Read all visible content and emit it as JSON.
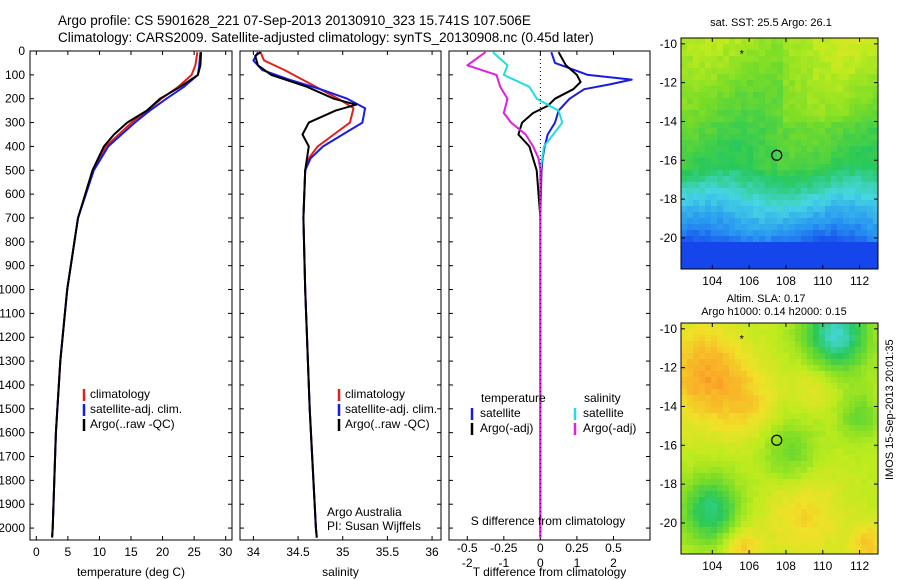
{
  "header": {
    "line1": "Argo profile: CS 5901628_221 07-Sep-2013 20130910_323 15.741S 107.506E",
    "line2": "Climatology: CARS2009. Satellite-adjusted climatology: synTS_20130908.nc (0.45d later)"
  },
  "stamp": "IMOS 15-Sep-2013 20:01:35",
  "colors": {
    "climatology": "#e3211c",
    "satellite": "#1a1ae6",
    "argo": "#000000",
    "sat_salinity": "#22dde0",
    "argo_salinity": "#e020e0"
  },
  "chart_data": [
    {
      "type": "line",
      "xlabel": "temperature (deg C)",
      "ylabel": "",
      "xlim": [
        -1,
        31
      ],
      "ylim": [
        2050,
        0
      ],
      "xticks": [
        0,
        5,
        10,
        15,
        20,
        25,
        30
      ],
      "yticks": [
        0,
        100,
        200,
        300,
        400,
        500,
        600,
        700,
        800,
        900,
        1000,
        1100,
        1200,
        1300,
        1400,
        1500,
        1600,
        1700,
        1800,
        1900,
        2000
      ],
      "legend": [
        "climatology",
        "satellite-adj. clim.",
        "Argo(..raw -QC)"
      ],
      "legend_position": "lower-right",
      "series": [
        {
          "name": "climatology",
          "color": "climatology",
          "depth": [
            5,
            60,
            100,
            150,
            200,
            250,
            300,
            400,
            500,
            700,
            1000,
            1300,
            1600,
            2000,
            2040
          ],
          "values": [
            25.5,
            25.2,
            24.6,
            22.5,
            19.8,
            17.6,
            15.1,
            11.0,
            9.0,
            6.6,
            4.9,
            3.8,
            3.1,
            2.6,
            2.5
          ]
        },
        {
          "name": "satellite-adj. clim.",
          "color": "satellite",
          "depth": [
            5,
            60,
            100,
            150,
            200,
            250,
            300,
            400,
            500,
            700,
            1000,
            1300,
            1600,
            2000,
            2040
          ],
          "values": [
            26.0,
            25.8,
            25.6,
            23.4,
            20.6,
            18.0,
            15.6,
            11.4,
            9.1,
            6.6,
            4.9,
            3.8,
            3.1,
            2.6,
            2.5
          ]
        },
        {
          "name": "Argo(..raw -QC)",
          "color": "argo",
          "depth": [
            5,
            60,
            100,
            150,
            200,
            250,
            300,
            350,
            400,
            500,
            700,
            1000,
            1300,
            1600,
            2000,
            2040
          ],
          "values": [
            26.1,
            26.0,
            25.6,
            22.8,
            19.6,
            17.5,
            14.4,
            12.3,
            10.7,
            8.9,
            6.6,
            4.9,
            3.8,
            3.1,
            2.6,
            2.5
          ]
        }
      ]
    },
    {
      "type": "line",
      "xlabel": "salinity",
      "ylabel": "",
      "xlim": [
        33.85,
        36.1
      ],
      "ylim": [
        2050,
        0
      ],
      "xticks": [
        34,
        34.5,
        35,
        35.5,
        36
      ],
      "legend": [
        "climatology",
        "satellite-adj. clim.",
        "Argo(..raw -QC)"
      ],
      "legend_position": "lower-right",
      "annotations": [
        "Argo Australia",
        "PI: Susan Wijffels"
      ],
      "series": [
        {
          "name": "climatology",
          "color": "climatology",
          "depth": [
            5,
            40,
            80,
            120,
            160,
            200,
            240,
            300,
            350,
            400,
            450,
            500,
            700,
            1000,
            1500,
            2000,
            2040
          ],
          "values": [
            34.08,
            34.12,
            34.35,
            34.55,
            34.75,
            34.95,
            35.12,
            35.08,
            34.9,
            34.72,
            34.62,
            34.58,
            34.56,
            34.58,
            34.63,
            34.7,
            34.71
          ]
        },
        {
          "name": "satellite-adj. clim.",
          "color": "satellite",
          "depth": [
            5,
            40,
            80,
            120,
            160,
            200,
            240,
            300,
            350,
            400,
            450,
            500,
            700,
            1000,
            1500,
            2000,
            2040
          ],
          "values": [
            34.05,
            34.0,
            34.1,
            34.4,
            34.75,
            35.05,
            35.25,
            35.22,
            35.0,
            34.78,
            34.64,
            34.58,
            34.56,
            34.58,
            34.63,
            34.7,
            34.71
          ]
        },
        {
          "name": "Argo(..raw -QC)",
          "color": "argo",
          "depth": [
            5,
            20,
            60,
            100,
            150,
            200,
            225,
            250,
            300,
            350,
            400,
            450,
            500,
            700,
            1000,
            1500,
            2000,
            2040
          ],
          "values": [
            34.08,
            34.02,
            34.05,
            34.2,
            34.6,
            34.9,
            35.15,
            34.92,
            34.62,
            34.55,
            34.62,
            34.6,
            34.58,
            34.56,
            34.58,
            34.63,
            34.7,
            34.71
          ]
        }
      ]
    },
    {
      "type": "line",
      "xlabel": "T difference from climatology",
      "xlabel_top": "S difference from climatology",
      "ylabel": "",
      "xlim": [
        -2.5,
        3
      ],
      "ylim": [
        2050,
        0
      ],
      "xticks": [
        -2,
        -1,
        0,
        1,
        2
      ],
      "xticks_s": [
        "-0.5",
        "-0.25",
        "0",
        "0.25",
        "0.5"
      ],
      "xticks_s_values": [
        -2,
        -1,
        0,
        1,
        2
      ],
      "legend_groups": [
        "temperature",
        "salinity"
      ],
      "legend": [
        "satellite",
        "Argo(-adj)",
        "satellite",
        "Argo(-adj)"
      ],
      "series": [
        {
          "name": "satellite",
          "group": "temperature",
          "color": "satellite",
          "depth": [
            5,
            50,
            100,
            120,
            140,
            160,
            200,
            250,
            300,
            350,
            400,
            450,
            500,
            700,
            1000,
            1500,
            2040
          ],
          "values": [
            0.3,
            0.4,
            1.3,
            2.5,
            1.9,
            1.2,
            0.8,
            0.5,
            0.4,
            0.2,
            0.12,
            0.06,
            0.03,
            0.0,
            0.0,
            0.0,
            0.0
          ]
        },
        {
          "name": "Argo(-adj)",
          "group": "temperature",
          "color": "argo",
          "depth": [
            5,
            60,
            100,
            130,
            160,
            200,
            230,
            260,
            300,
            350,
            400,
            500,
            700,
            1000,
            1500,
            2040
          ],
          "values": [
            0.5,
            0.7,
            1.0,
            1.1,
            0.9,
            0.4,
            0.2,
            -0.2,
            -0.5,
            -0.6,
            -0.3,
            -0.1,
            0.0,
            0.0,
            0.0,
            0.0
          ]
        },
        {
          "name": "satellite",
          "group": "salinity",
          "color": "sat_salinity",
          "depth": [
            5,
            60,
            100,
            150,
            200,
            250,
            300,
            400,
            500,
            700,
            1000,
            1500,
            2040
          ],
          "values": [
            -1.3,
            -0.9,
            -1.0,
            -0.3,
            -0.1,
            0.5,
            0.6,
            0.1,
            0.0,
            0.0,
            0.0,
            0.0,
            0.0
          ]
        },
        {
          "name": "Argo(-adj)",
          "group": "salinity",
          "color": "argo_salinity",
          "depth": [
            5,
            60,
            100,
            150,
            200,
            260,
            300,
            350,
            400,
            450,
            500,
            700,
            1000,
            1500,
            2040
          ],
          "values": [
            -1.5,
            -2.0,
            -1.2,
            -1.1,
            -0.9,
            -1.0,
            -0.8,
            -0.4,
            -0.2,
            -0.05,
            0.0,
            0.0,
            0.0,
            0.0,
            0.0
          ]
        }
      ]
    },
    {
      "type": "heatmap",
      "title": "sat. SST: 25.5 Argo: 26.1",
      "xlim": [
        102.3,
        113.0
      ],
      "ylim": [
        -21.6,
        -9.7
      ],
      "xticks": [
        104,
        106,
        108,
        110,
        112
      ],
      "yticks": [
        -10,
        -12,
        -14,
        -16,
        -18,
        -20
      ],
      "profile_marker": {
        "lon": 107.5,
        "lat": -15.74
      },
      "previous_marker": {
        "lon": 105.6,
        "lat": -10.5
      }
    },
    {
      "type": "heatmap",
      "title_lines": [
        "Altim. SLA: 0.17",
        "Argo h1000: 0.14 h2000: 0.15"
      ],
      "xlim": [
        102.3,
        113.0
      ],
      "ylim": [
        -21.6,
        -9.7
      ],
      "xticks": [
        104,
        106,
        108,
        110,
        112
      ],
      "yticks": [
        -10,
        -12,
        -14,
        -16,
        -18,
        -20
      ],
      "profile_marker": {
        "lon": 107.5,
        "lat": -15.74
      },
      "previous_marker": {
        "lon": 105.6,
        "lat": -10.5
      }
    }
  ]
}
